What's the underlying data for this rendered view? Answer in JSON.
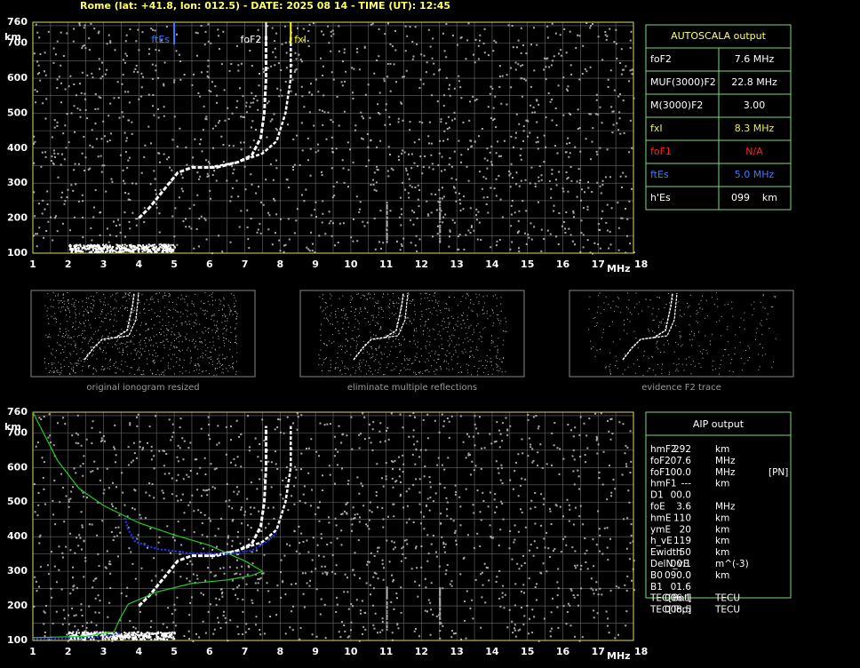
{
  "header": "Rome (lat: +41.8, lon: 012.5) - DATE: 2025 08 14 - TIME (UT): 12:45",
  "axes": {
    "y_unit": "km",
    "x_unit": "MHz",
    "yticks": [
      "760",
      "700",
      "600",
      "500",
      "400",
      "300",
      "200",
      "100"
    ],
    "xticks": [
      "1",
      "2",
      "3",
      "4",
      "5",
      "6",
      "7",
      "8",
      "9",
      "10",
      "11",
      "12",
      "13",
      "14",
      "15",
      "16",
      "17",
      "18"
    ]
  },
  "markers": {
    "ftEs": "ftEs",
    "foF2": "foF2",
    "fxI": "fxI"
  },
  "autoscala": {
    "title": "AUTOSCALA output",
    "rows": [
      [
        "foF2",
        "7.6 MHz"
      ],
      [
        "MUF(3000)F2",
        "22.8 MHz"
      ],
      [
        "M(3000)F2",
        "3.00"
      ],
      [
        "fxI",
        "8.3 MHz"
      ],
      [
        "foF1",
        "N/A"
      ],
      [
        "ftEs",
        "5.0 MHz"
      ],
      [
        "h'Es",
        "099    km"
      ]
    ]
  },
  "thumbnails": [
    "original ionogram resized",
    "eliminate multiple reflections",
    "evidence F2 trace"
  ],
  "aip": {
    "title": "AIP output",
    "rows": [
      [
        "hmF2",
        "292",
        "km"
      ],
      [
        "foF2",
        "07.6",
        "MHz"
      ],
      [
        "foF1",
        "00.0",
        "MHz",
        "[PN]"
      ],
      [
        "hmF1",
        "---",
        "km"
      ],
      [
        "D1",
        "00.0"
      ],
      [
        "foE",
        "3.6",
        "MHz"
      ],
      [
        "hmE",
        "110",
        "km"
      ],
      [
        "ymE",
        "20",
        "km"
      ],
      [
        "h_vE",
        "119",
        "km"
      ],
      [
        "Ewidth",
        "50",
        "km"
      ],
      [
        "DelN_vE",
        "00.1",
        "m^(-3)"
      ],
      [
        "B0",
        "090.0",
        "km"
      ],
      [
        "B1",
        "01.6"
      ],
      [
        "TEC[Bot]",
        "006.1",
        "TECU"
      ],
      [
        "TEC[Top]",
        "008.5",
        "TECU"
      ]
    ]
  }
}
